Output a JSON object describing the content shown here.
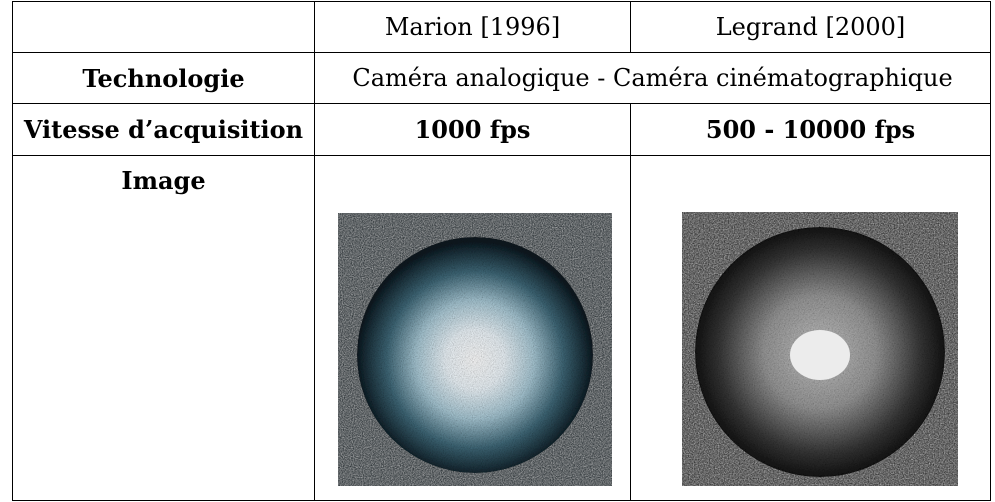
{
  "table": {
    "columns": [
      "Marion [1996]",
      "Legrand [2000]"
    ],
    "rows": [
      {
        "label": "Technologie",
        "value": "Caméra analogique - Caméra cinématographique"
      },
      {
        "label": "Vitesse d’acquisition",
        "values": [
          "1000 fps",
          "500 - 10000 fps"
        ]
      },
      {
        "label": "Image"
      }
    ]
  }
}
